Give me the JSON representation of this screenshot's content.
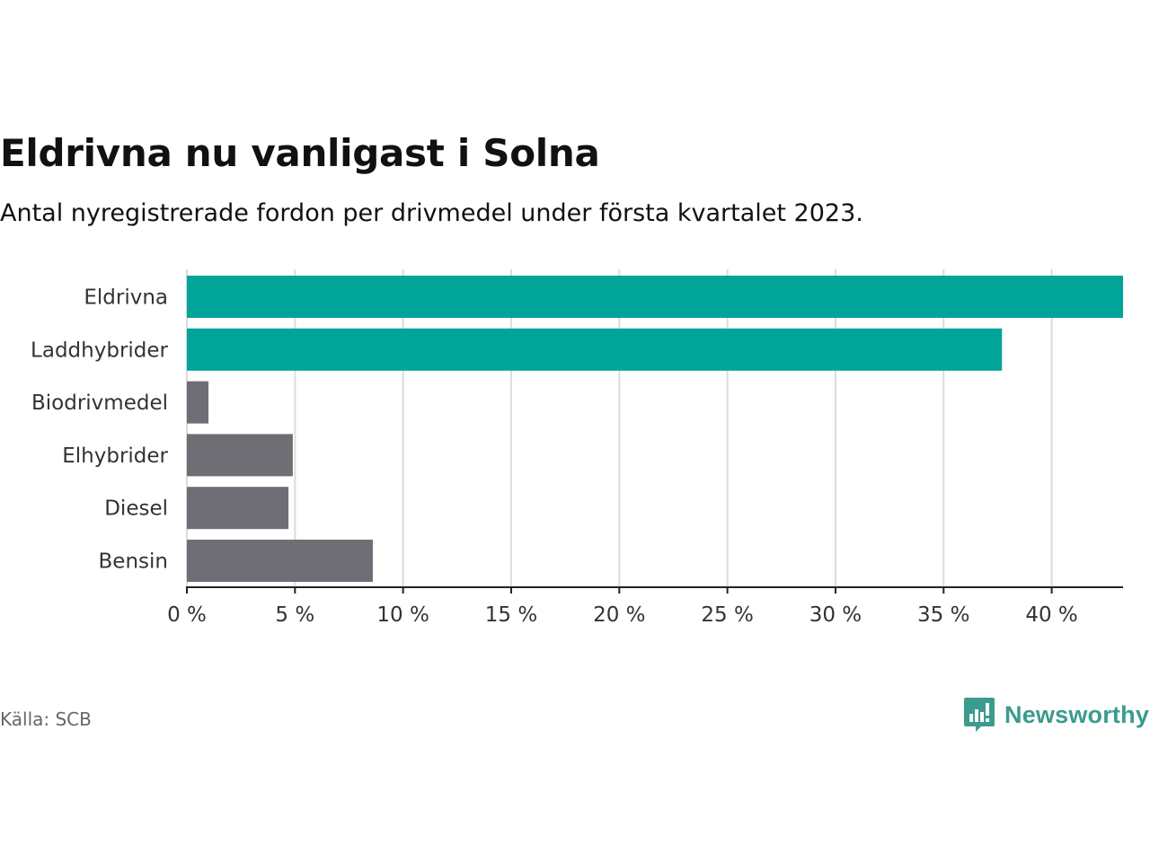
{
  "header": {
    "title": "Eldrivna nu vanligast i Solna",
    "subtitle": "Antal nyregistrerade fordon per drivmedel under första kvartalet 2023."
  },
  "chart_data": {
    "type": "bar",
    "orientation": "horizontal",
    "categories": [
      "Eldrivna",
      "Laddhybrider",
      "Biodrivmedel",
      "Elhybrider",
      "Diesel",
      "Bensin"
    ],
    "values": [
      43.3,
      37.7,
      1.0,
      4.9,
      4.7,
      8.6
    ],
    "colors": [
      "#00a499",
      "#00a499",
      "#6f6e74",
      "#6f6e74",
      "#6f6e74",
      "#6f6e74"
    ],
    "xlim": [
      0,
      43.3
    ],
    "xticks": [
      0,
      5,
      10,
      15,
      20,
      25,
      30,
      35,
      40
    ],
    "tick_labels": [
      "0 %",
      "5 %",
      "10 %",
      "15 %",
      "20 %",
      "25 %",
      "30 %",
      "35 %",
      "40 %"
    ],
    "grid": true,
    "xlabel": "",
    "ylabel": ""
  },
  "footer": {
    "source": "Källa: SCB",
    "brand": "Newsworthy",
    "brand_color": "#3b9b8e"
  }
}
